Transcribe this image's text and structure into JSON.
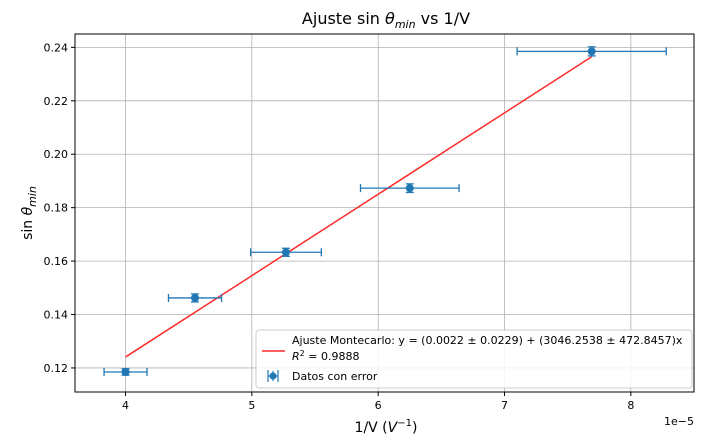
{
  "chart_data": {
    "type": "scatter",
    "title_text": "Ajuste sin",
    "title_symbol": "θ",
    "title_sub": "min",
    "title_suffix": " vs 1/V",
    "xlabel_text": "1/V (",
    "xlabel_base": "V",
    "xlabel_exp": "−1",
    "xlabel_close": ")",
    "ylabel_text": "sin",
    "ylabel_symbol": "θ",
    "ylabel_sub": "min",
    "x_offset_label": "1e−5",
    "xlim": [
      3.6,
      8.5
    ],
    "ylim": [
      0.111,
      0.245
    ],
    "x_scale_multiplier": 1e-05,
    "xticks": [
      4,
      5,
      6,
      7,
      8
    ],
    "yticks": [
      0.12,
      0.14,
      0.16,
      0.18,
      0.2,
      0.22,
      0.24
    ],
    "ytick_labels": [
      "0.12",
      "0.14",
      "0.16",
      "0.18",
      "0.20",
      "0.22",
      "0.24"
    ],
    "grid": true,
    "legend_position": "lower-right",
    "series": [
      {
        "name": "Datos con error",
        "kind": "errorbar",
        "color": "#1f77b4",
        "x": [
          4.0,
          4.55,
          5.27,
          6.25,
          7.69
        ],
        "y": [
          0.1185,
          0.1462,
          0.1633,
          0.1873,
          0.2385
        ],
        "xerr": [
          0.17,
          0.21,
          0.28,
          0.39,
          0.59
        ],
        "yerr": [
          0.0012,
          0.0015,
          0.0015,
          0.0016,
          0.0017
        ]
      },
      {
        "name": "Ajuste Montecarlo: y = (0.0022 ± 0.0229) + (3046.2538 ± 472.8457)x",
        "legend_line2_prefix": "R",
        "legend_line2_exp": "2",
        "legend_line2_suffix": " = 0.9888",
        "kind": "line",
        "color": "#ff2a2a",
        "x": [
          4.0,
          7.69
        ],
        "y": [
          0.1241,
          0.2365
        ]
      }
    ]
  }
}
